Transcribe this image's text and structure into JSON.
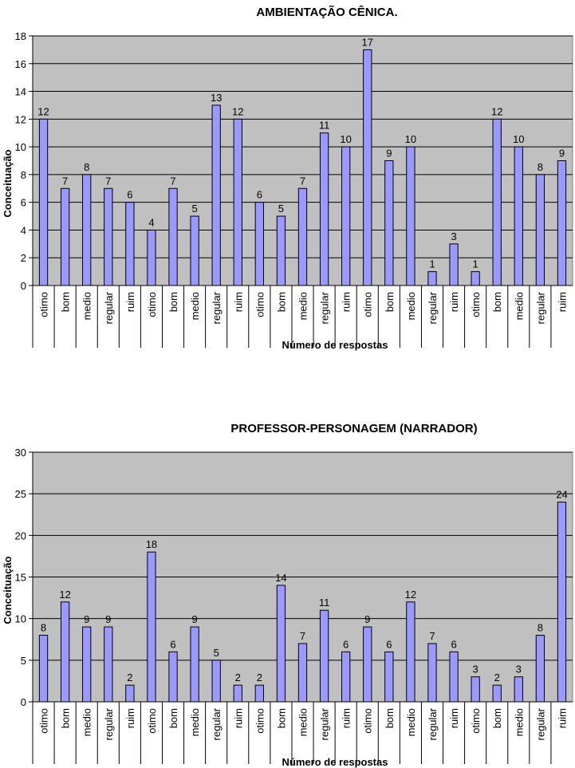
{
  "chart_data": [
    {
      "type": "bar",
      "title": "AMBIENTAÇÃO CÊNICA.",
      "xlabel": "Número de respostas",
      "ylabel": "Conceituação",
      "ylim": [
        0,
        18
      ],
      "yticks": [
        0,
        2,
        4,
        6,
        8,
        10,
        12,
        14,
        16,
        18
      ],
      "categories": [
        "otimo",
        "bom",
        "medio",
        "regular",
        "ruim",
        "otimo",
        "bom",
        "medio",
        "regular",
        "ruim",
        "otimo",
        "bom",
        "medio",
        "regular",
        "ruim",
        "otimo",
        "bom",
        "medio",
        "regular",
        "ruim",
        "otimo",
        "bom",
        "medio",
        "regular",
        "ruim"
      ],
      "values": [
        12,
        7,
        8,
        7,
        6,
        4,
        7,
        5,
        13,
        12,
        6,
        5,
        7,
        11,
        10,
        17,
        9,
        10,
        1,
        3,
        1,
        12,
        10,
        8,
        9
      ],
      "grid": true,
      "bar_color": "#9999ff",
      "plot_background": "#c0c0c0"
    },
    {
      "type": "bar",
      "title": "PROFESSOR-PERSONAGEM (NARRADOR)",
      "xlabel": "Número de respostas",
      "ylabel": "Conceituação",
      "ylim": [
        0,
        30
      ],
      "yticks": [
        0,
        5,
        10,
        15,
        20,
        25,
        30
      ],
      "categories": [
        "otimo",
        "bom",
        "medio",
        "regular",
        "ruim",
        "otimo",
        "bom",
        "medio",
        "regular",
        "ruim",
        "otimo",
        "bom",
        "medio",
        "regular",
        "ruim",
        "otimo",
        "bom",
        "medio",
        "regular",
        "ruim",
        "otimo",
        "bom",
        "medio",
        "regular",
        "ruim"
      ],
      "values": [
        8,
        12,
        9,
        9,
        2,
        18,
        6,
        9,
        5,
        2,
        2,
        14,
        7,
        11,
        6,
        9,
        6,
        12,
        7,
        6,
        3,
        2,
        3,
        8,
        24
      ],
      "grid": true,
      "bar_color": "#9999ff",
      "plot_background": "#c0c0c0"
    }
  ]
}
